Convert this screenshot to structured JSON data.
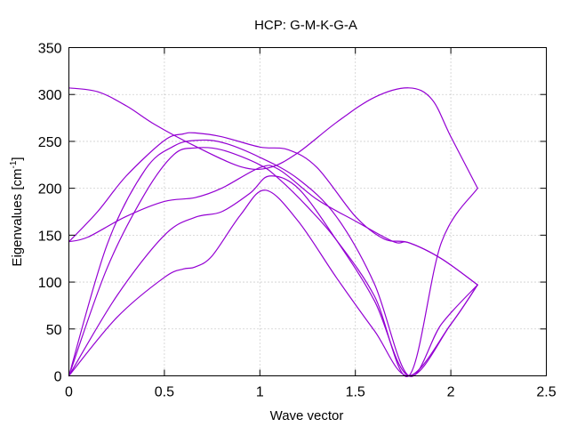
{
  "chart_data": {
    "type": "line",
    "title": "HCP: G-M-K-G-A",
    "xlabel": "Wave vector",
    "ylabel": "Eigenvalues [cm",
    "ylabel_sup": "-1",
    "ylabel_end": "]",
    "xlim": [
      0,
      2.5
    ],
    "ylim": [
      0,
      350
    ],
    "xticks": [
      "0",
      "0.5",
      "1",
      "1.5",
      "2",
      "2.5"
    ],
    "yticks": [
      "0",
      "50",
      "100",
      "150",
      "200",
      "250",
      "300",
      "350"
    ],
    "grid": true,
    "legend": "none",
    "line_color": "#9400d3",
    "series": [
      {
        "x": [
          0,
          0.25,
          0.5,
          0.6,
          0.66,
          0.75,
          0.9,
          1.03,
          1.2,
          1.4,
          1.6,
          1.78,
          2.0,
          2.14
        ],
        "y": [
          0,
          62,
          105,
          114,
          116,
          128,
          172,
          198,
          165,
          105,
          48,
          0,
          55,
          97
        ]
      },
      {
        "x": [
          0,
          0.25,
          0.5,
          0.66,
          0.8,
          0.95,
          1.05,
          1.2,
          1.4,
          1.6,
          1.78,
          2.0,
          2.14
        ],
        "y": [
          0,
          85,
          150,
          169,
          175,
          195,
          213,
          200,
          145,
          80,
          0,
          55,
          97
        ]
      },
      {
        "x": [
          0,
          0.2,
          0.4,
          0.55,
          0.66,
          0.8,
          1.0,
          1.1,
          1.25,
          1.4,
          1.6,
          1.78,
          1.95,
          2.14
        ],
        "y": [
          0,
          115,
          195,
          236,
          243,
          241,
          225,
          210,
          180,
          145,
          85,
          0,
          142,
          200
        ]
      },
      {
        "x": [
          0,
          0.2,
          0.4,
          0.55,
          0.66,
          0.8,
          1.0,
          1.2,
          1.4,
          1.6,
          1.78,
          1.95,
          2.14
        ],
        "y": [
          0,
          140,
          220,
          245,
          251,
          249,
          233,
          210,
          170,
          98,
          0,
          55,
          97
        ]
      },
      {
        "x": [
          0,
          0.1,
          0.3,
          0.5,
          0.66,
          0.8,
          1.0,
          1.1,
          1.3,
          1.5,
          1.7,
          1.78,
          1.95,
          2.14
        ],
        "y": [
          143,
          148,
          170,
          186,
          190,
          200,
          222,
          220,
          188,
          165,
          143,
          142,
          125,
          97
        ]
      },
      {
        "x": [
          0,
          0.15,
          0.3,
          0.5,
          0.6,
          0.66,
          0.8,
          1.0,
          1.15,
          1.3,
          1.5,
          1.65,
          1.78,
          1.95,
          2.14
        ],
        "y": [
          143,
          175,
          213,
          251,
          258,
          259,
          255,
          244,
          241,
          222,
          170,
          146,
          142,
          125,
          97
        ]
      },
      {
        "x": [
          0,
          0.15,
          0.3,
          0.45,
          0.66,
          0.9,
          1.05,
          1.2,
          1.4,
          1.6,
          1.78,
          1.9,
          2.0,
          2.14
        ],
        "y": [
          307,
          303,
          288,
          268,
          245,
          223,
          222,
          238,
          270,
          297,
          307,
          295,
          255,
          200
        ]
      }
    ]
  }
}
